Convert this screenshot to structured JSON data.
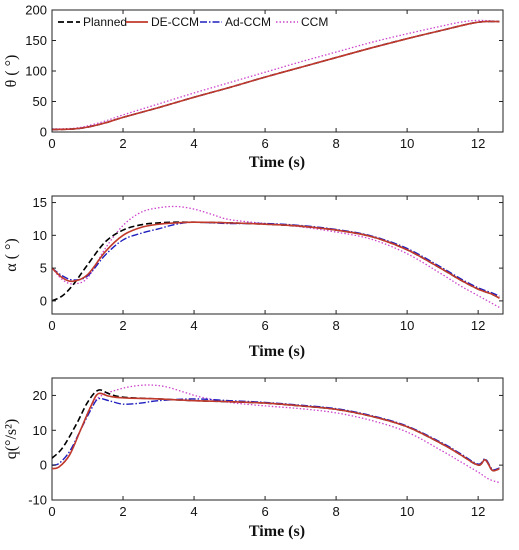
{
  "series_styles": [
    {
      "name": "Planned",
      "color": "#000000",
      "dash": "6,3",
      "width": 1.6
    },
    {
      "name": "DE-CCM",
      "color": "#c0392b",
      "dash": "",
      "width": 1.6
    },
    {
      "name": "Ad-CCM",
      "color": "#1f1fbf",
      "dash": "7,2,1.5,2",
      "width": 1.4
    },
    {
      "name": "CCM",
      "color": "#cc44cc",
      "dash": "1.5,2",
      "width": 1.3
    }
  ],
  "chart_data": [
    {
      "type": "line",
      "title": "",
      "xlabel": "Time (s)",
      "ylabel": "θ ( °)",
      "xlim": [
        0,
        12.7
      ],
      "ylim": [
        0,
        200
      ],
      "xticks": [
        "0",
        "2",
        "4",
        "6",
        "8",
        "10",
        "12"
      ],
      "yticks": [
        "0",
        "50",
        "100",
        "150",
        "200"
      ],
      "grid": false,
      "legend": "top-left",
      "series": [
        {
          "name": "Planned",
          "x": [
            0,
            0.6,
            1.0,
            1.5,
            2,
            3,
            4,
            5,
            6,
            7,
            8,
            9,
            10,
            11,
            11.8,
            12.2,
            12.6
          ],
          "values": [
            4,
            5,
            8,
            15,
            24,
            40,
            57,
            73,
            90,
            106,
            122,
            138,
            153,
            167,
            178,
            181,
            181
          ]
        },
        {
          "name": "DE-CCM",
          "x": [
            0,
            0.6,
            1.0,
            1.5,
            2,
            3,
            4,
            5,
            6,
            7,
            8,
            9,
            10,
            11,
            11.8,
            12.2,
            12.6
          ],
          "values": [
            4,
            5,
            8,
            15,
            24,
            40,
            57,
            73,
            90,
            106,
            122,
            138,
            153,
            167,
            178,
            181,
            181
          ]
        },
        {
          "name": "Ad-CCM",
          "x": [
            0,
            0.6,
            1.0,
            1.5,
            2,
            3,
            4,
            5,
            6,
            7,
            8,
            9,
            10,
            11,
            11.8,
            12.2,
            12.6
          ],
          "values": [
            4,
            5,
            8,
            15,
            24,
            40,
            57,
            73,
            90,
            106,
            122,
            138,
            153,
            167,
            178,
            181,
            181
          ]
        },
        {
          "name": "CCM",
          "x": [
            0,
            0.6,
            1.0,
            1.5,
            2,
            3,
            4,
            5,
            6,
            7,
            8,
            9,
            10,
            11,
            11.5,
            12.0,
            12.6
          ],
          "values": [
            5,
            6,
            10,
            18,
            28,
            46,
            64,
            81,
            98,
            115,
            131,
            147,
            161,
            174,
            180,
            183,
            181
          ]
        }
      ]
    },
    {
      "type": "line",
      "title": "",
      "xlabel": "Time (s)",
      "ylabel": "α ( °)",
      "xlim": [
        0,
        12.7
      ],
      "ylim": [
        -2,
        16
      ],
      "xticks": [
        "0",
        "2",
        "4",
        "6",
        "8",
        "10",
        "12"
      ],
      "yticks": [
        "0",
        "5",
        "10",
        "15"
      ],
      "grid": false,
      "legend": "none",
      "series": [
        {
          "name": "Planned",
          "x": [
            0,
            0.3,
            0.6,
            1.0,
            1.5,
            2,
            2.5,
            3,
            3.5,
            4,
            5,
            6,
            7,
            8,
            9,
            10,
            11,
            11.5,
            12,
            12.4,
            12.6
          ],
          "values": [
            0,
            0.8,
            2.5,
            5.5,
            9,
            10.8,
            11.6,
            11.9,
            12,
            12,
            11.9,
            11.7,
            11.4,
            10.8,
            9.8,
            7.8,
            4.8,
            3.2,
            1.8,
            1.0,
            0.4
          ]
        },
        {
          "name": "DE-CCM",
          "x": [
            0,
            0.3,
            0.6,
            1.0,
            1.5,
            2,
            2.5,
            3,
            3.5,
            4,
            5,
            6,
            7,
            8,
            9,
            10,
            11,
            11.5,
            12,
            12.4,
            12.6
          ],
          "values": [
            5,
            3.5,
            3.0,
            4.0,
            7.5,
            10.0,
            11.2,
            11.7,
            11.9,
            12,
            11.9,
            11.7,
            11.4,
            10.8,
            9.8,
            7.8,
            4.8,
            3.2,
            1.8,
            1.0,
            0.4
          ]
        },
        {
          "name": "Ad-CCM",
          "x": [
            0,
            0.3,
            0.6,
            1.0,
            1.5,
            2,
            2.5,
            3,
            3.5,
            4,
            5,
            6,
            7,
            8,
            9,
            10,
            11,
            11.5,
            12,
            12.4,
            12.6
          ],
          "values": [
            5,
            3.8,
            3.2,
            3.8,
            7.0,
            9.3,
            10.3,
            11.0,
            11.7,
            12,
            11.8,
            11.8,
            11.5,
            10.9,
            9.9,
            8.0,
            5.0,
            3.4,
            2.0,
            1.2,
            0.7
          ]
        },
        {
          "name": "CCM",
          "x": [
            0,
            0.3,
            0.6,
            1.0,
            1.5,
            2,
            2.5,
            3,
            3.5,
            4,
            4.5,
            5,
            6,
            7,
            8,
            9,
            10,
            11,
            11.5,
            12,
            12.4,
            12.6
          ],
          "values": [
            5,
            3.2,
            2.6,
            3.5,
            8.0,
            11.5,
            13.5,
            14.2,
            14.4,
            14.0,
            13.2,
            12.4,
            11.8,
            11.3,
            10.5,
            9.4,
            7.2,
            4.0,
            2.3,
            0.8,
            -0.4,
            -1.0
          ]
        }
      ]
    },
    {
      "type": "line",
      "title": "",
      "xlabel": "Time (s)",
      "ylabel": "q(°/s²)",
      "xlim": [
        0,
        12.7
      ],
      "ylim": [
        -10,
        25
      ],
      "xticks": [
        "0",
        "2",
        "4",
        "6",
        "8",
        "10",
        "12"
      ],
      "yticks": [
        "-10",
        "0",
        "10",
        "20"
      ],
      "grid": false,
      "legend": "none",
      "series": [
        {
          "name": "Planned",
          "x": [
            0,
            0.3,
            0.7,
            1.0,
            1.3,
            1.6,
            2,
            3,
            4,
            5,
            6,
            7,
            8,
            9,
            10,
            11,
            11.5,
            12,
            12.2,
            12.4,
            12.6
          ],
          "values": [
            2,
            5,
            12,
            18,
            21.5,
            20.5,
            19.5,
            19,
            18.5,
            18.2,
            17.8,
            17.0,
            16.0,
            14.0,
            11.0,
            6.0,
            3.0,
            0,
            1.5,
            -1.5,
            -1.0
          ]
        },
        {
          "name": "DE-CCM",
          "x": [
            0,
            0.2,
            0.5,
            0.8,
            1.1,
            1.3,
            1.6,
            2,
            3,
            4,
            5,
            6,
            7,
            8,
            9,
            10,
            11,
            11.5,
            12,
            12.2,
            12.4,
            12.6
          ],
          "values": [
            -1,
            -0.5,
            3,
            10,
            17,
            20.5,
            19.8,
            19.3,
            19,
            18.5,
            18.2,
            17.8,
            17.0,
            16.0,
            14.0,
            11.0,
            6.0,
            3.0,
            0,
            1.5,
            -1.5,
            -1.0
          ]
        },
        {
          "name": "Ad-CCM",
          "x": [
            0,
            0.2,
            0.5,
            0.8,
            1.1,
            1.3,
            1.6,
            2,
            2.5,
            3,
            4,
            5,
            6,
            7,
            8,
            9,
            10,
            11,
            11.5,
            12,
            12.2,
            12.4,
            12.6
          ],
          "values": [
            0,
            0.5,
            4,
            10,
            16,
            19,
            18.5,
            17.5,
            17.8,
            18.5,
            19.0,
            18.5,
            18.0,
            17.2,
            16.2,
            14.2,
            11.2,
            6.3,
            3.3,
            0.3,
            1.8,
            -1.2,
            -0.8
          ]
        },
        {
          "name": "CCM",
          "x": [
            0,
            0.2,
            0.5,
            0.8,
            1.1,
            1.4,
            1.8,
            2.2,
            2.7,
            3.2,
            3.7,
            4.2,
            5,
            6,
            7,
            8,
            9,
            10,
            11,
            11.5,
            12,
            12.3,
            12.6
          ],
          "values": [
            -1,
            -0.5,
            3,
            10,
            17,
            20,
            21.5,
            22.5,
            23,
            22.5,
            21,
            19.5,
            18.0,
            17.0,
            16.2,
            15.0,
            12.8,
            9.5,
            4.0,
            1.0,
            -2.0,
            -4.0,
            -5.0
          ]
        }
      ]
    }
  ]
}
